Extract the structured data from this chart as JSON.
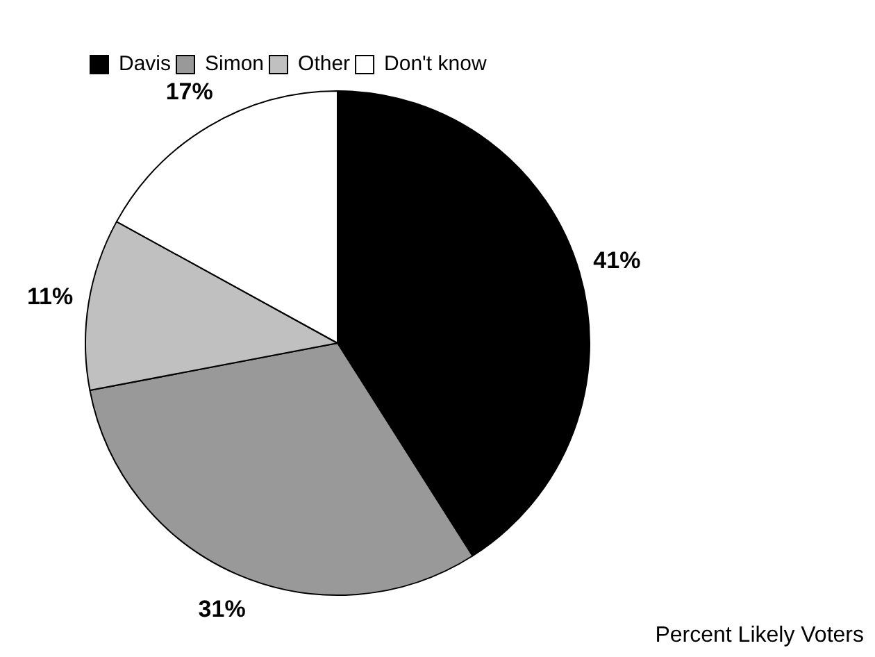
{
  "chart_data": {
    "type": "pie",
    "categories": [
      "Davis",
      "Simon",
      "Other",
      "Don't know"
    ],
    "values": [
      41,
      31,
      11,
      17
    ],
    "colors": [
      "#000000",
      "#999999",
      "#c0c0c0",
      "#ffffff"
    ],
    "value_labels": [
      "41%",
      "31%",
      "11%",
      "17%"
    ],
    "legend": "top left",
    "annotations": [
      "Percent Likely Voters"
    ]
  }
}
